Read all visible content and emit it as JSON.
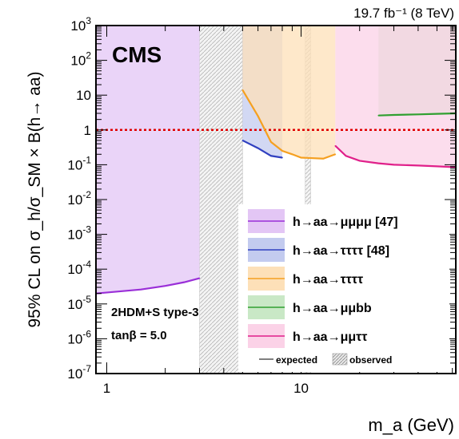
{
  "chart_data": {
    "type": "line",
    "title": "",
    "lumi_label": "19.7 fb⁻¹ (8 TeV)",
    "experiment_label": "CMS",
    "model_label": "2HDM+S type-3",
    "param_label": "tanβ = 5.0",
    "xlabel": "m_a (GeV)",
    "ylabel": "95% CL on σ_h/σ_SM × B(h→ aa)",
    "xscale": "log",
    "yscale": "log",
    "xlim": [
      0.88,
      62.5
    ],
    "ylim": [
      1e-07,
      1000
    ],
    "x_ticks": [
      "1",
      "10"
    ],
    "y_ticks": [
      "10^-7",
      "10^-6",
      "10^-5",
      "10^-4",
      "10^-3",
      "10^-2",
      "10^-1",
      "1",
      "10",
      "10^2",
      "10^3"
    ],
    "reference_line": {
      "y": 1,
      "style": "dotted",
      "color": "#e00000"
    },
    "legend": {
      "placement": "bottom-right",
      "entries": [
        {
          "label": "h→aa→μμμμ [47]",
          "color": "#9a2fd8"
        },
        {
          "label": "h→aa→ττττ [48]",
          "color": "#3040c0"
        },
        {
          "label": "h→aa→ττττ",
          "color": "#f5a020"
        },
        {
          "label": "h→aa→μμbb",
          "color": "#30a030"
        },
        {
          "label": "h→aa→μμττ",
          "color": "#e0208a"
        }
      ],
      "expected_label": "expected",
      "observed_label": "observed"
    },
    "series": [
      {
        "name": "h→aa→μμμμ [47]",
        "color": "#9a2fd8",
        "fill": "#e3c6f5",
        "x": [
          0.88,
          1.5,
          2.0,
          2.5,
          3.0
        ],
        "y": [
          2e-05,
          2.6e-05,
          3.3e-05,
          4.2e-05,
          5.5e-05
        ]
      },
      {
        "name": "h→aa→ττττ [48]",
        "color": "#3040c0",
        "fill": "#c3cbef",
        "x": [
          5.0,
          6.0,
          7.0,
          8.0
        ],
        "y": [
          0.5,
          0.3,
          0.18,
          0.16
        ]
      },
      {
        "name": "h→aa→ττττ",
        "color": "#f5a020",
        "fill": "#fde0b8",
        "x": [
          5.0,
          6.0,
          7.0,
          8.0,
          9.0,
          10.0,
          13.0,
          15.0
        ],
        "y": [
          14,
          2.5,
          0.45,
          0.25,
          0.2,
          0.16,
          0.15,
          0.2
        ]
      },
      {
        "name": "h→aa→μμbb",
        "color": "#30a030",
        "fill": "#c9e8c6",
        "x": [
          25,
          30,
          40,
          50,
          62.5
        ],
        "y": [
          2.6,
          2.7,
          2.8,
          2.9,
          3.0
        ]
      },
      {
        "name": "h→aa→μμττ",
        "color": "#e0208a",
        "fill": "#fbd2e7",
        "x": [
          15,
          17,
          20,
          25,
          30,
          40,
          50,
          62.5
        ],
        "y": [
          0.35,
          0.18,
          0.13,
          0.11,
          0.1,
          0.095,
          0.09,
          0.085
        ]
      }
    ],
    "excluded_regions": [
      {
        "x": [
          3.0,
          5.0
        ]
      },
      {
        "x": [
          10.5,
          11.2
        ]
      }
    ]
  }
}
